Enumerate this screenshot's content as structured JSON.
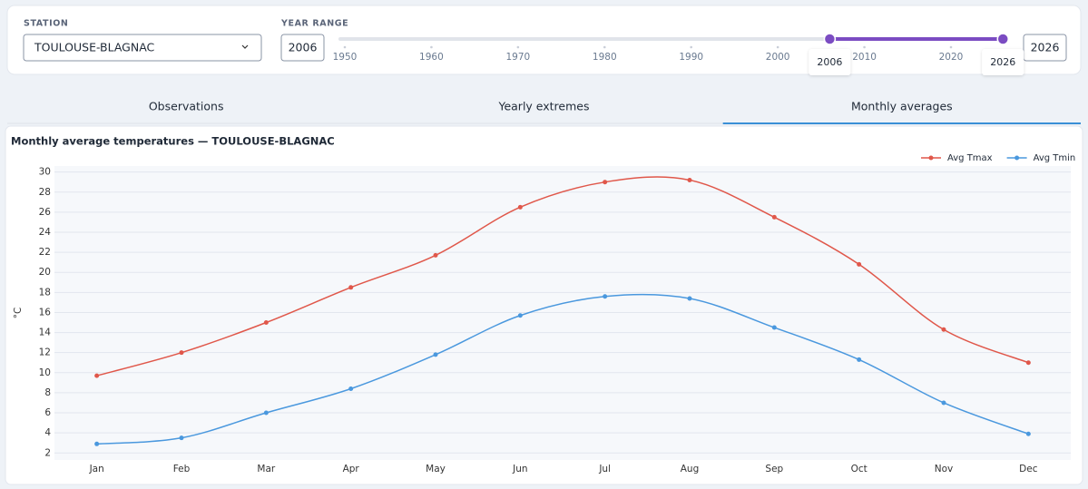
{
  "controls": {
    "station_label": "STATION",
    "station": "TOULOUSE-BLAGNAC",
    "year_range_label": "YEAR RANGE",
    "start_year": 2006,
    "end_year": 2026,
    "slider": {
      "range": [
        1950,
        2026
      ],
      "ticks": [
        1950,
        1960,
        1970,
        1980,
        1990,
        2000,
        2010,
        2020
      ]
    }
  },
  "tabs": {
    "items": [
      "Observations",
      "Yearly extremes",
      "Monthly averages"
    ],
    "active": 2
  },
  "chart_data": {
    "type": "line",
    "title": "Monthly average temperatures — TOULOUSE-BLAGNAC",
    "y_label": "°C",
    "categories": [
      "Jan",
      "Feb",
      "Mar",
      "Apr",
      "May",
      "Jun",
      "Jul",
      "Aug",
      "Sep",
      "Oct",
      "Nov",
      "Dec"
    ],
    "series": [
      {
        "name": "Avg Tmax",
        "color": "#e0574a",
        "values": [
          9.7,
          12.0,
          15.0,
          18.5,
          21.7,
          26.5,
          29.0,
          29.2,
          25.5,
          20.8,
          14.3,
          11.0
        ]
      },
      {
        "name": "Avg Tmin",
        "color": "#4a98de",
        "values": [
          2.9,
          3.5,
          6.0,
          8.4,
          11.8,
          15.7,
          17.6,
          17.4,
          14.5,
          11.3,
          7.0,
          3.9
        ]
      }
    ],
    "ylim": [
      1.3,
      30.6
    ],
    "yticks": [
      2,
      4,
      6,
      8,
      10,
      12,
      14,
      16,
      18,
      20,
      22,
      24,
      26,
      28,
      30
    ],
    "grid": true,
    "legend": "top-right"
  }
}
